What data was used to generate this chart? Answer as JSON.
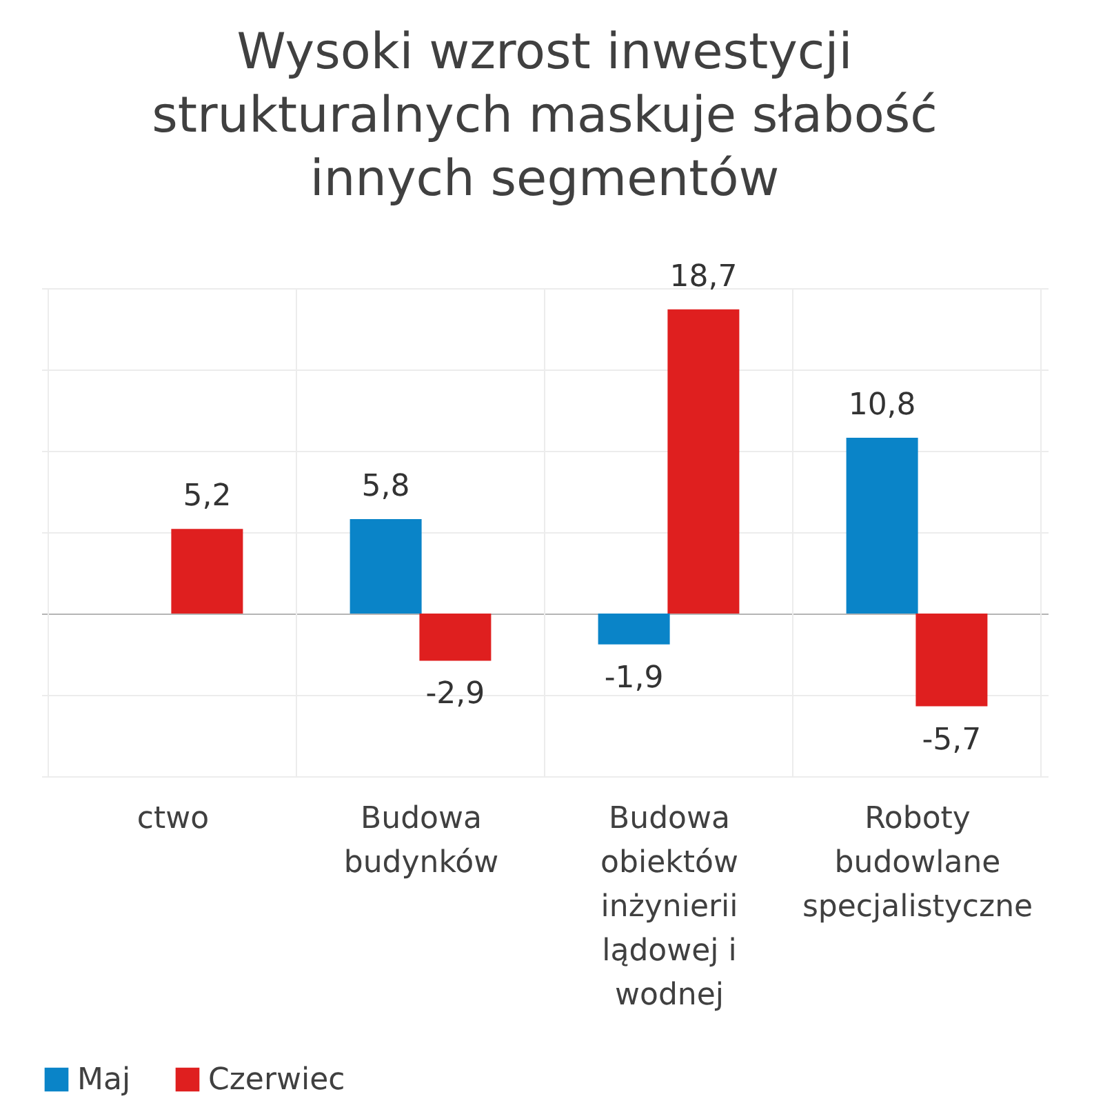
{
  "chart_data": {
    "type": "bar",
    "title": [
      "Wysoki wzrost inwestycji",
      "strukturalnych maskuje słabość",
      "innych segmentów"
    ],
    "categories": [
      "ctwo",
      "Budowa budynków",
      "Budowa obiektów inżynierii lądowej i wodnej",
      "Roboty budowlane specjalistyczne"
    ],
    "series": [
      {
        "name": "Maj",
        "color": "#0a84c8",
        "values": [
          null,
          5.8,
          -1.9,
          10.8
        ],
        "value_labels": [
          null,
          "5,8",
          "-1,9",
          "10,8"
        ]
      },
      {
        "name": "Czerwiec",
        "color": "#df1f1f",
        "values": [
          5.2,
          -2.9,
          18.7,
          -5.7
        ],
        "value_labels": [
          "5,2",
          "-2,9",
          "18,7",
          "-5,7"
        ]
      }
    ],
    "tick_labels": "x",
    "grid": true,
    "legend": "bottom"
  }
}
